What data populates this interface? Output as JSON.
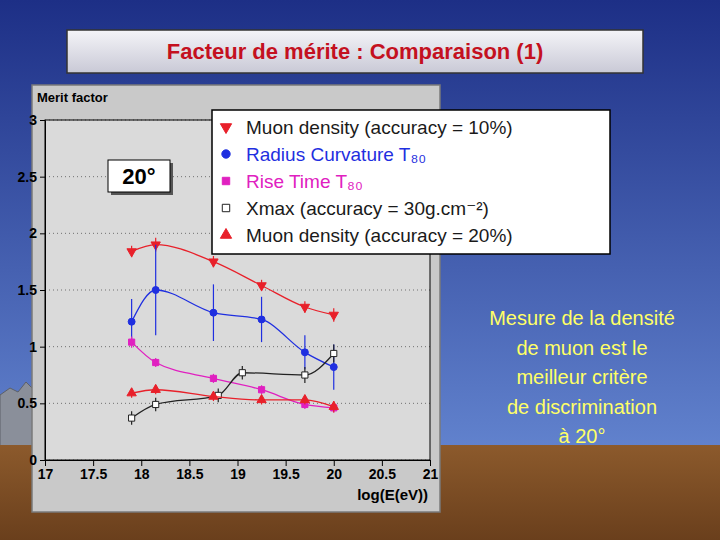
{
  "chart_data": {
    "type": "line",
    "title": "Facteur de mérite : Comparaison (1)",
    "xlabel": "log(E(eV))",
    "ylabel": "Merit factor",
    "annotations": [
      "20°"
    ],
    "xlim": [
      17,
      21
    ],
    "xticks": [
      17,
      17.5,
      18,
      18.5,
      19,
      19.5,
      20,
      20.5,
      21
    ],
    "ylim": [
      0,
      3
    ],
    "yticks": [
      0,
      0.5,
      1,
      1.5,
      2,
      2.5,
      3
    ],
    "grid": true,
    "legend": "top-right",
    "series": [
      {
        "name": "Muon density (accuracy = 10%)",
        "color": "#e8202a",
        "marker": "triangle-down",
        "x": [
          17.9,
          18.15,
          18.75,
          19.25,
          19.7,
          20
        ],
        "values": [
          1.84,
          1.9,
          1.75,
          1.54,
          1.35,
          1.28
        ],
        "errors": [
          0.05,
          0.06,
          0.05,
          0.05,
          0.05,
          0.06
        ]
      },
      {
        "name": "Radius Curvature T₈₀",
        "color": "#1f2fe0",
        "marker": "circle",
        "x": [
          17.9,
          18.15,
          18.75,
          19.25,
          19.7,
          20
        ],
        "values": [
          1.22,
          1.5,
          1.3,
          1.24,
          0.95,
          0.82
        ],
        "errors": [
          0.2,
          0.4,
          0.25,
          0.2,
          0.15,
          0.2
        ]
      },
      {
        "name": "Rise Time T₈₀",
        "color": "#e020c0",
        "marker": "square",
        "x": [
          17.9,
          18.15,
          18.75,
          19.25,
          19.7,
          20
        ],
        "values": [
          1.04,
          0.86,
          0.72,
          0.62,
          0.49,
          0.46
        ],
        "errors": [
          0.05,
          0.04,
          0.04,
          0.04,
          0.04,
          0.04
        ]
      },
      {
        "name": "Xmax (accuracy = 30g.cm⁻²)",
        "color": "#222222",
        "marker": "square-open",
        "x": [
          17.9,
          18.15,
          18.8,
          19.05,
          19.7,
          20
        ],
        "values": [
          0.37,
          0.49,
          0.57,
          0.77,
          0.75,
          0.94
        ],
        "errors": [
          0.06,
          0.06,
          0.06,
          0.06,
          0.07,
          0.08
        ]
      },
      {
        "name": "Muon density (accuracy = 20%)",
        "color": "#e8202a",
        "marker": "triangle-up",
        "x": [
          17.9,
          18.15,
          18.75,
          19.25,
          19.7,
          20
        ],
        "values": [
          0.59,
          0.62,
          0.56,
          0.53,
          0.53,
          0.47
        ],
        "errors": [
          0.04,
          0.04,
          0.04,
          0.04,
          0.04,
          0.05
        ]
      }
    ]
  },
  "note": [
    "Mesure de la densité",
    "de muon est le",
    "meilleur critère",
    "de discrimination",
    "à 20°"
  ]
}
